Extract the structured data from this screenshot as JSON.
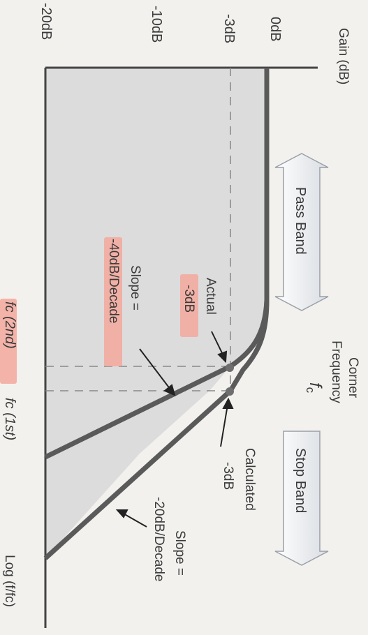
{
  "y_axis": {
    "title": "Gain (dB)",
    "ticks": [
      "0dB",
      "-3dB",
      "-10dB",
      "-20dB"
    ]
  },
  "x_axis": {
    "title": "Log (f/fc)"
  },
  "regions": {
    "pass_band": "Pass Band",
    "stop_band": "Stop Band"
  },
  "corner": {
    "line1": "Corner",
    "line2": "Frequency",
    "symbol": "f",
    "subscript": "c"
  },
  "annotations": {
    "actual_line1": "Actual",
    "actual_line2": "-3dB",
    "calculated_line1": "Calculated",
    "calculated_line2": "-3dB",
    "slope2_line1": "Slope =",
    "slope2_line2": "-40dB/Decade",
    "slope1_line1": "Slope =",
    "slope1_line2": "-20dB/Decade",
    "fc_2nd": "fc (2nd)",
    "fc_1st": "fc (1st)"
  },
  "colors": {
    "curve": "#5a5a5a",
    "axis": "#444444",
    "fill": "#dcdcdc",
    "highlight": "#f4a89c",
    "dot": "#6e6e6e"
  }
}
